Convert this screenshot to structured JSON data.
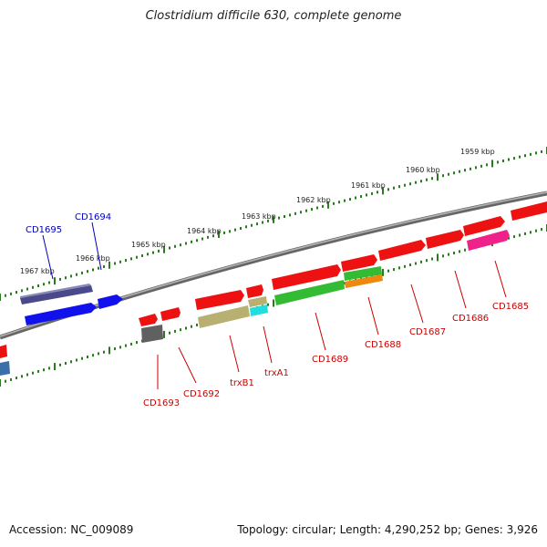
{
  "title": "Clostridium difficile 630, complete genome",
  "footer": {
    "accession": "Accession: NC_009089",
    "summary": "Topology: circular; Length: 4,290,252 bp; Genes: 3,926"
  },
  "colors": {
    "backbone": "#8a8a8a",
    "tick": "#2a7a1f",
    "label_red": "#cc0000",
    "label_blue": "#0000bb"
  },
  "ticks": [
    {
      "label": "1959 kbp"
    },
    {
      "label": "1960 kbp"
    },
    {
      "label": "1961 kbp"
    },
    {
      "label": "1962 kbp"
    },
    {
      "label": "1963 kbp"
    },
    {
      "label": "1964 kbp"
    },
    {
      "label": "1965 kbp"
    },
    {
      "label": "1966 kbp"
    },
    {
      "label": "1967 kbp"
    }
  ],
  "genes": [
    {
      "label": "CD1695",
      "color": "#4a4a8a"
    },
    {
      "label": "CD1694",
      "color": "#1111ee"
    },
    {
      "label": "CD1693",
      "color": "#606060"
    },
    {
      "label": "CD1692",
      "color": "#ee1111"
    },
    {
      "label": "trxB1",
      "color": "#b8b070"
    },
    {
      "label": "trxA1",
      "color": "#22dddd"
    },
    {
      "label": "CD1689",
      "color": "#33bb33"
    },
    {
      "label": "CD1688",
      "color": "#ee8811"
    },
    {
      "label": "CD1687",
      "color": "#ee1111"
    },
    {
      "label": "CD1686",
      "color": "#ee1111"
    },
    {
      "label": "CD1685",
      "color": "#ee2288"
    }
  ]
}
